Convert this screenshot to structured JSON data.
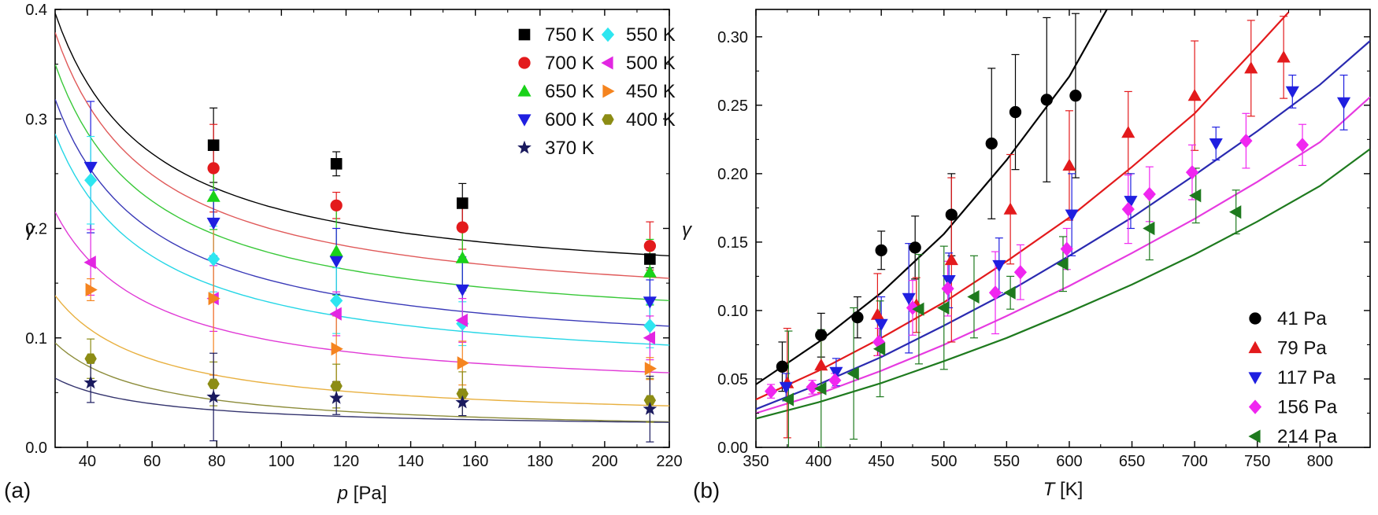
{
  "chart_data": [
    {
      "type": "scatter",
      "panel_label": "(a)",
      "xlabel_italic": "p",
      "xlabel_rest": " [Pa]",
      "ylabel": "γ",
      "xlim": [
        30,
        220
      ],
      "ylim": [
        0.0,
        0.4
      ],
      "xticks": [
        40,
        60,
        80,
        100,
        120,
        140,
        160,
        180,
        200,
        220
      ],
      "xtick_labels": [
        "40",
        "60",
        "80",
        "100",
        "120",
        "140",
        "160",
        "180",
        "200",
        "220"
      ],
      "yticks": [
        0.0,
        0.1,
        0.2,
        0.3,
        0.4
      ],
      "ytick_labels": [
        "0.0",
        "0.1",
        "0.2",
        "0.3",
        "0.4"
      ],
      "legend_position": "top-right",
      "legend_columns": 2,
      "grid": false,
      "series": [
        {
          "name": "750 K",
          "marker": "square",
          "color": "#000000",
          "line_color": "#000000",
          "x": [
            79,
            117,
            156,
            214
          ],
          "y": [
            0.276,
            0.259,
            0.223,
            0.172
          ],
          "err": [
            0.034,
            0.011,
            0.018,
            0.008
          ],
          "fit_a": 7.7,
          "fit_b": 0.14
        },
        {
          "name": "700 K",
          "marker": "circle",
          "color": "#e31a1c",
          "line_color": "#e05a5a",
          "x": [
            79,
            117,
            156,
            214
          ],
          "y": [
            0.255,
            0.221,
            0.201,
            0.184
          ],
          "err": [
            0.04,
            0.012,
            0.02,
            0.022
          ],
          "fit_a": 7.8,
          "fit_b": 0.119
        },
        {
          "name": "650 K",
          "marker": "triangle-up",
          "color": "#19d219",
          "line_color": "#39c839",
          "x": [
            79,
            117,
            156,
            214
          ],
          "y": [
            0.229,
            0.179,
            0.173,
            0.16
          ],
          "err": [
            0.03,
            0.04,
            0.03,
            0.03
          ],
          "fit_a": 7.5,
          "fit_b": 0.1
        },
        {
          "name": "600 K",
          "marker": "triangle-down",
          "color": "#1f1fe0",
          "line_color": "#3a3ab8",
          "x": [
            41,
            79,
            117,
            156,
            214
          ],
          "y": [
            0.256,
            0.205,
            0.17,
            0.144,
            0.133
          ],
          "err": [
            0.06,
            0.03,
            0.03,
            0.03,
            0.02
          ],
          "fit_a": 7.2,
          "fit_b": 0.078
        },
        {
          "name": "550 K",
          "marker": "diamond",
          "color": "#2ee6f0",
          "line_color": "#25d6e6",
          "x": [
            41,
            79,
            117,
            156,
            214
          ],
          "y": [
            0.244,
            0.172,
            0.134,
            0.113,
            0.111
          ],
          "err": [
            0.04,
            0.03,
            0.03,
            0.02,
            0.02
          ],
          "fit_a": 6.7,
          "fit_b": 0.063
        },
        {
          "name": "500 K",
          "marker": "triangle-left",
          "color": "#e226e2",
          "line_color": "#e03ad6",
          "x": [
            41,
            79,
            117,
            156,
            214
          ],
          "y": [
            0.169,
            0.136,
            0.122,
            0.116,
            0.1
          ],
          "err": [
            0.03,
            0.03,
            0.02,
            0.02,
            0.02
          ],
          "fit_a": 5.1,
          "fit_b": 0.045
        },
        {
          "name": "450 K",
          "marker": "triangle-right",
          "color": "#f5841f",
          "line_color": "#e8b040",
          "x": [
            41,
            79,
            117,
            156,
            214
          ],
          "y": [
            0.144,
            0.136,
            0.09,
            0.077,
            0.072
          ],
          "err": [
            0.01,
            0.07,
            0.03,
            0.02,
            0.01
          ],
          "fit_a": 3.5,
          "fit_b": 0.022
        },
        {
          "name": "400 K",
          "marker": "hexagon",
          "color": "#8c8c14",
          "line_color": "#8c8c3a",
          "x": [
            41,
            79,
            117,
            156,
            214
          ],
          "y": [
            0.081,
            0.058,
            0.056,
            0.049,
            0.043
          ],
          "err": [
            0.018,
            0.02,
            0.02,
            0.02,
            0.02
          ],
          "fit_a": 2.5,
          "fit_b": 0.012
        },
        {
          "name": "370 K",
          "marker": "star",
          "color": "#1a1a5e",
          "line_color": "#34346e",
          "x": [
            41,
            79,
            117,
            156,
            214
          ],
          "y": [
            0.059,
            0.046,
            0.045,
            0.041,
            0.035
          ],
          "err": [
            0.018,
            0.04,
            0.015,
            0.012,
            0.03
          ],
          "fit_a": 1.4,
          "fit_b": 0.0165
        }
      ]
    },
    {
      "type": "scatter",
      "panel_label": "(b)",
      "xlabel_italic": "T",
      "xlabel_rest": " [K]",
      "ylabel": "γ",
      "xlim": [
        350,
        840
      ],
      "ylim": [
        0.0,
        0.32
      ],
      "xticks": [
        350,
        400,
        450,
        500,
        550,
        600,
        650,
        700,
        750,
        800
      ],
      "xtick_labels": [
        "350",
        "400",
        "450",
        "500",
        "550",
        "600",
        "650",
        "700",
        "750",
        "800"
      ],
      "yticks": [
        0.0,
        0.05,
        0.1,
        0.15,
        0.2,
        0.25,
        0.3
      ],
      "ytick_labels": [
        "0.00",
        "0.05",
        "0.10",
        "0.15",
        "0.20",
        "0.25",
        "0.30"
      ],
      "legend_position": "bottom-right",
      "legend_columns": 1,
      "grid": false,
      "series": [
        {
          "name": "41 Pa",
          "marker": "circle",
          "color": "#000000",
          "line_color": "#000000",
          "x": [
            371,
            402,
            431,
            450,
            477,
            506,
            538,
            557,
            582,
            605
          ],
          "y": [
            0.059,
            0.082,
            0.095,
            0.144,
            0.146,
            0.17,
            0.222,
            0.245,
            0.254,
            0.257
          ],
          "err": [
            0.018,
            0.016,
            0.015,
            0.014,
            0.023,
            0.03,
            0.055,
            0.042,
            0.06,
            0.06
          ],
          "fit_T": [
            350,
            400,
            450,
            500,
            550,
            600,
            630
          ],
          "fit_y": [
            0.046,
            0.077,
            0.113,
            0.156,
            0.21,
            0.271,
            0.32
          ]
        },
        {
          "name": "79 Pa",
          "marker": "triangle-up",
          "color": "#e31a1c",
          "line_color": "#e31a1c",
          "x": [
            375,
            402,
            447,
            478,
            506,
            553,
            600,
            647,
            700,
            745,
            771
          ],
          "y": [
            0.047,
            0.06,
            0.097,
            0.104,
            0.137,
            0.174,
            0.206,
            0.23,
            0.257,
            0.277,
            0.285
          ],
          "err": [
            0.04,
            0.02,
            0.03,
            0.02,
            0.06,
            0.04,
            0.04,
            0.03,
            0.04,
            0.035,
            0.03
          ],
          "fit_T": [
            350,
            400,
            450,
            500,
            550,
            600,
            650,
            700,
            750,
            775
          ],
          "fit_y": [
            0.035,
            0.056,
            0.08,
            0.106,
            0.136,
            0.168,
            0.205,
            0.244,
            0.293,
            0.318
          ]
        },
        {
          "name": "117 Pa",
          "marker": "triangle-down",
          "color": "#1f1fe0",
          "line_color": "#2a2ab0",
          "x": [
            374,
            414,
            450,
            472,
            504,
            544,
            602,
            649,
            717,
            778,
            819
          ],
          "y": [
            0.044,
            0.055,
            0.09,
            0.109,
            0.122,
            0.133,
            0.17,
            0.18,
            0.222,
            0.26,
            0.252
          ],
          "err": [
            0.01,
            0.01,
            0.02,
            0.04,
            0.02,
            0.02,
            0.03,
            0.02,
            0.012,
            0.012,
            0.02
          ],
          "fit_T": [
            350,
            400,
            450,
            500,
            550,
            600,
            650,
            700,
            750,
            800,
            840
          ],
          "fit_y": [
            0.028,
            0.046,
            0.066,
            0.089,
            0.113,
            0.14,
            0.168,
            0.199,
            0.231,
            0.265,
            0.297
          ]
        },
        {
          "name": "156 Pa",
          "marker": "diamond",
          "color": "#f026f0",
          "line_color": "#e63ae0",
          "x": [
            362,
            395,
            413,
            448,
            475,
            503,
            541,
            561,
            598,
            647,
            664,
            698,
            741,
            786
          ],
          "y": [
            0.041,
            0.044,
            0.049,
            0.077,
            0.102,
            0.116,
            0.113,
            0.128,
            0.145,
            0.174,
            0.185,
            0.201,
            0.224,
            0.221
          ],
          "err": [
            0.005,
            0.005,
            0.005,
            0.01,
            0.02,
            0.02,
            0.03,
            0.02,
            0.015,
            0.025,
            0.02,
            0.02,
            0.02,
            0.015
          ],
          "fit_T": [
            350,
            400,
            450,
            500,
            550,
            600,
            650,
            700,
            750,
            800,
            840
          ],
          "fit_y": [
            0.025,
            0.039,
            0.056,
            0.075,
            0.096,
            0.118,
            0.142,
            0.167,
            0.194,
            0.223,
            0.256
          ]
        },
        {
          "name": "214 Pa",
          "marker": "triangle-left",
          "color": "#1e7a1e",
          "line_color": "#1e7a1e",
          "x": [
            376,
            402,
            428,
            449,
            480,
            500,
            524,
            553,
            595,
            664,
            701,
            733
          ],
          "y": [
            0.035,
            0.043,
            0.054,
            0.072,
            0.101,
            0.102,
            0.11,
            0.113,
            0.134,
            0.16,
            0.184,
            0.172
          ],
          "err": [
            0.05,
            0.043,
            0.048,
            0.035,
            0.04,
            0.045,
            0.03,
            0.012,
            0.02,
            0.023,
            0.02,
            0.016
          ],
          "fit_T": [
            350,
            400,
            450,
            500,
            550,
            600,
            650,
            700,
            750,
            800,
            840
          ],
          "fit_y": [
            0.021,
            0.033,
            0.047,
            0.063,
            0.08,
            0.099,
            0.119,
            0.141,
            0.165,
            0.191,
            0.218
          ]
        }
      ]
    }
  ]
}
